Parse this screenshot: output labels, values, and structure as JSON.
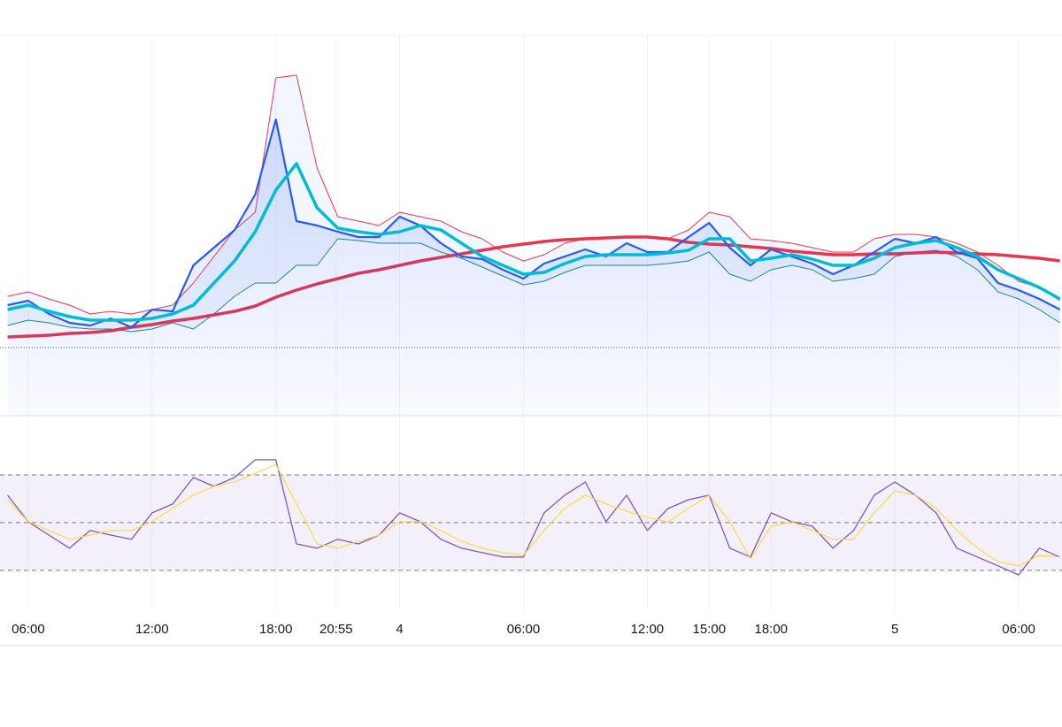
{
  "chart_data": [
    {
      "type": "line",
      "x": [
        5,
        6,
        7,
        8,
        9,
        10,
        11,
        12,
        13,
        14,
        15,
        16,
        17,
        18,
        19,
        20,
        21,
        22,
        23,
        24,
        25,
        26,
        27,
        28,
        29,
        30,
        31,
        32,
        33,
        34,
        35,
        36,
        37,
        38,
        39,
        40,
        41,
        42,
        43,
        44,
        45,
        46,
        47,
        48,
        49,
        50,
        51,
        52,
        53,
        54,
        55,
        56
      ],
      "xlim": [
        4.63,
        56.1
      ],
      "ylim": [
        0,
        43
      ],
      "reference": 7.7,
      "fill_between": [
        3,
        4
      ],
      "series": [
        {
          "color": "#2a5bf0",
          "area": true,
          "values": [
            12.5,
            13,
            11.5,
            10.5,
            10.2,
            11,
            10,
            12,
            11.8,
            17,
            19,
            21,
            25,
            33.5,
            22,
            21.5,
            20.8,
            20.2,
            20.2,
            22.5,
            21.5,
            19.5,
            18,
            17.7,
            16.5,
            15.5,
            17.2,
            18,
            18.8,
            18,
            19.5,
            18.5,
            18.5,
            20.2,
            21.8,
            19,
            17,
            18.8,
            18,
            17.2,
            16,
            17,
            18.5,
            20,
            19.5,
            20.2,
            18.5,
            17.8,
            15,
            14.2,
            13.2,
            12
          ]
        },
        {
          "color": "#00bcd4",
          "values": [
            12,
            12.5,
            11.8,
            11.2,
            10.8,
            10.8,
            10.8,
            11,
            11.5,
            12.5,
            15,
            17.5,
            20.8,
            25.5,
            28.5,
            23.5,
            21.2,
            20.8,
            20.5,
            20.8,
            21.5,
            21,
            19.5,
            18,
            17,
            16,
            16.2,
            17.2,
            18,
            18.2,
            18.2,
            18.2,
            18.4,
            18.7,
            20,
            20,
            17.5,
            17.8,
            18.2,
            17.7,
            17,
            17,
            17.8,
            19,
            19.5,
            19.8,
            19,
            18,
            16.5,
            15.5,
            14.5,
            13.2
          ]
        },
        {
          "color": "#e8344e",
          "values": [
            8.9,
            9,
            9.1,
            9.3,
            9.4,
            9.6,
            10,
            10.3,
            10.7,
            11,
            11.4,
            11.8,
            12.4,
            13.4,
            14.2,
            14.9,
            15.5,
            16.1,
            16.5,
            17,
            17.5,
            17.9,
            18.3,
            18.7,
            19.1,
            19.4,
            19.7,
            19.9,
            20,
            20.1,
            20.2,
            20.2,
            20,
            19.6,
            19.4,
            19.3,
            19.1,
            18.9,
            18.6,
            18.4,
            18.2,
            18.2,
            18.3,
            18.3,
            18.4,
            18.5,
            18.4,
            18.3,
            18.2,
            18,
            17.8,
            17.5
          ]
        },
        {
          "color": "#e53950",
          "values": [
            13.5,
            14,
            13.2,
            12.5,
            11.5,
            11.8,
            11.5,
            12,
            12.5,
            15,
            18,
            21,
            23,
            38.2,
            38.5,
            28,
            22.5,
            22,
            21.5,
            23,
            22.5,
            22,
            20.8,
            20,
            18.5,
            17.5,
            18.2,
            19.5,
            20,
            20,
            20.2,
            20.2,
            20,
            21,
            23,
            22.5,
            20,
            19.8,
            19.5,
            19,
            18.5,
            18.5,
            20,
            20.5,
            20.5,
            20.2,
            19.5,
            18.5,
            17,
            15.2,
            14.5,
            13
          ]
        },
        {
          "color": "#1e8c7a",
          "values": [
            10.2,
            10.8,
            10.5,
            10,
            9.8,
            9.8,
            9.5,
            9.8,
            10.5,
            9.8,
            11.5,
            13.5,
            15,
            15,
            17,
            17,
            20,
            19.8,
            19.5,
            19.5,
            19.5,
            18.5,
            17.8,
            16.8,
            15.8,
            14.8,
            15.2,
            16.2,
            17,
            17,
            17,
            17,
            17.2,
            17.5,
            18.5,
            16,
            15.2,
            16.5,
            17,
            16.5,
            15.2,
            15.5,
            16,
            18,
            18.5,
            18.7,
            18,
            16.5,
            14,
            13.2,
            12,
            10.5
          ]
        }
      ]
    },
    {
      "type": "line",
      "x": [
        5,
        6,
        7,
        8,
        9,
        10,
        11,
        12,
        13,
        14,
        15,
        16,
        17,
        18,
        19,
        20,
        21,
        22,
        23,
        24,
        25,
        26,
        27,
        28,
        29,
        30,
        31,
        32,
        33,
        34,
        35,
        36,
        37,
        38,
        39,
        40,
        41,
        42,
        43,
        44,
        45,
        46,
        47,
        48,
        49,
        50,
        51,
        52,
        53,
        54,
        55,
        56
      ],
      "xlim": [
        4.63,
        56.1
      ],
      "ylim": [
        13.3,
        94.8
      ],
      "bands": [
        30,
        50,
        70
      ],
      "xticks": [
        {
          "value": 6,
          "label": "06:00"
        },
        {
          "value": 12,
          "label": "12:00"
        },
        {
          "value": 18,
          "label": "18:00"
        },
        {
          "value": 20.92,
          "label": "20:55"
        },
        {
          "value": 24,
          "label": "4"
        },
        {
          "value": 30,
          "label": "06:00"
        },
        {
          "value": 36,
          "label": "12:00"
        },
        {
          "value": 39,
          "label": "15:00"
        },
        {
          "value": 42,
          "label": "18:00"
        },
        {
          "value": 48,
          "label": "5"
        },
        {
          "value": 54,
          "label": "06:00"
        }
      ],
      "series": [
        {
          "color": "#7e57c2",
          "values": [
            61.5,
            50.4,
            44.8,
            39.3,
            46.7,
            44.8,
            43,
            54.1,
            57.8,
            68.9,
            65.2,
            68.9,
            76.3,
            76.3,
            41.1,
            39.3,
            43,
            41.1,
            44.8,
            54.1,
            50.4,
            43,
            39.3,
            37.4,
            35.6,
            35.6,
            54.1,
            61.5,
            67,
            50.4,
            61.5,
            46.7,
            55.9,
            59.6,
            61.5,
            39.3,
            35.6,
            54.1,
            50.4,
            48.5,
            39.3,
            46.7,
            61.5,
            67,
            61.5,
            54.1,
            39.3,
            35.6,
            31.9,
            28.1,
            39.3,
            35.6
          ]
        },
        {
          "color": "#fdd835",
          "values": [
            59.6,
            50.4,
            46.7,
            43,
            44.8,
            46.7,
            46.7,
            50.4,
            56,
            61.5,
            65.2,
            67,
            70.7,
            74.4,
            57.8,
            41.1,
            39.3,
            42.2,
            44.8,
            50.4,
            50.4,
            46.7,
            42.2,
            39.3,
            37.4,
            36.3,
            46.7,
            56,
            61.5,
            57.8,
            54.8,
            52.2,
            50.4,
            56,
            61.5,
            50.4,
            34.8,
            48.5,
            50.4,
            46.7,
            43,
            43,
            54.1,
            63.3,
            61.5,
            56,
            46.7,
            39.3,
            33.7,
            31.9,
            36.3,
            35.6
          ]
        }
      ]
    }
  ]
}
